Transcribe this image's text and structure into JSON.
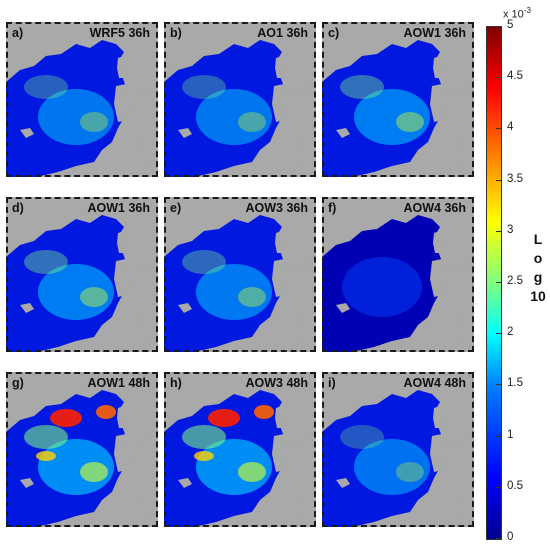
{
  "panels": [
    {
      "label": "a)",
      "title": "WRF5 36h",
      "intensity": 0.45
    },
    {
      "label": "b)",
      "title": "AO1 36h",
      "intensity": 0.45
    },
    {
      "label": "c)",
      "title": "AOW1 36h",
      "intensity": 0.55
    },
    {
      "label": "d)",
      "title": "AOW1 36h",
      "intensity": 0.55
    },
    {
      "label": "e)",
      "title": "AOW3 36h",
      "intensity": 0.5
    },
    {
      "label": "f)",
      "title": "AOW4 36h",
      "intensity": 0.12
    },
    {
      "label": "g)",
      "title": "AOW1 48h",
      "intensity": 0.8
    },
    {
      "label": "h)",
      "title": "AOW3 48h",
      "intensity": 0.8
    },
    {
      "label": "i)",
      "title": "AOW4 48h",
      "intensity": 0.4
    }
  ],
  "colorbar": {
    "scale": "x 10",
    "scale_exp": "-3",
    "ticks": [
      "5",
      "4.5",
      "4",
      "3.5",
      "3",
      "2.5",
      "2",
      "1.5",
      "1",
      "0.5",
      "0"
    ],
    "label_letters": [
      "L",
      "o",
      "g",
      "10"
    ],
    "colors": {
      "ocean_low": "#0000c8",
      "land": "#a9a9a9"
    }
  }
}
